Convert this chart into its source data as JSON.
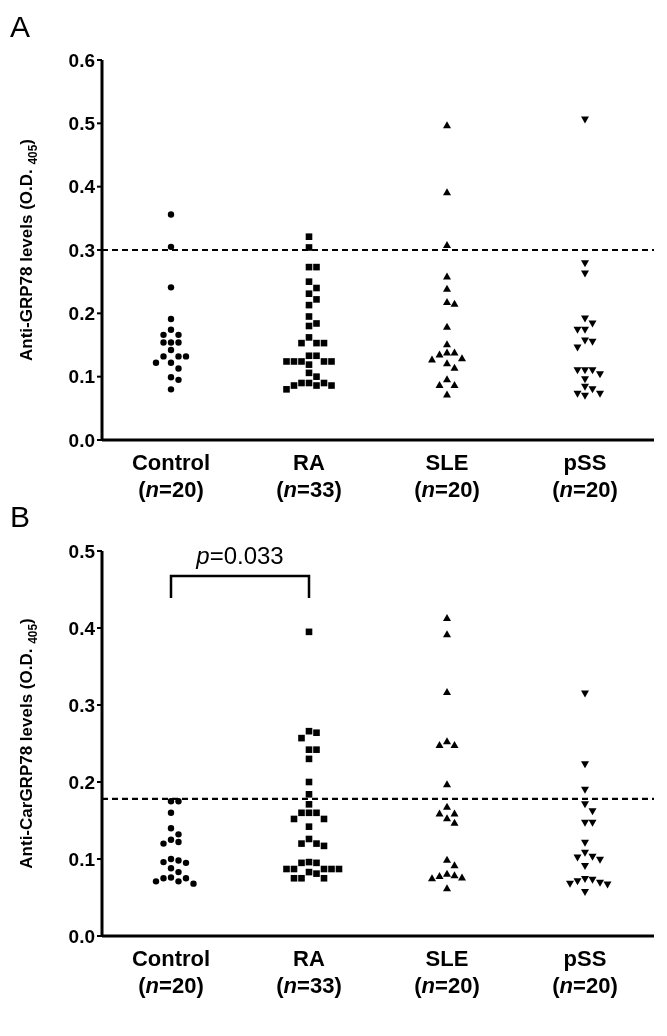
{
  "chart_data": [
    {
      "type": "scatter",
      "title": "A",
      "ylabel": "Anti-GRP78 levels (O.D. $_{405}$)",
      "categories": [
        "Control (n=20)",
        "RA (n=33)",
        "SLE (n=20)",
        "pSS (n=20)"
      ],
      "ylim": [
        0,
        0.6
      ],
      "yticks": [
        {
          "value": 0,
          "label": "0.0"
        },
        {
          "value": 0.1,
          "label": "0.1"
        },
        {
          "value": 0.2,
          "label": "0.2"
        },
        {
          "value": 0.3,
          "label": "0.3"
        },
        {
          "value": 0.4,
          "label": "0.4"
        },
        {
          "value": 0.5,
          "label": "0.5"
        },
        {
          "value": 0.6,
          "label": "0.6"
        }
      ],
      "ref_lines": [
        {
          "axis": "y",
          "value": 0.3,
          "line_style": "dashed",
          "color": "#000000"
        }
      ],
      "series": [
        {
          "color": "#000000",
          "marker": "circle",
          "x": [
            "Control (n=20)",
            "Control (n=20)",
            "Control (n=20)",
            "Control (n=20)",
            "Control (n=20)",
            "Control (n=20)",
            "Control (n=20)",
            "Control (n=20)",
            "Control (n=20)",
            "Control (n=20)",
            "Control (n=20)",
            "Control (n=20)",
            "Control (n=20)",
            "Control (n=20)",
            "Control (n=20)",
            "Control (n=20)",
            "Control (n=20)",
            "Control (n=20)",
            "Control (n=20)",
            "Control (n=20)"
          ],
          "values": [
            0.356,
            0.305,
            0.241,
            0.191,
            0.174,
            0.166,
            0.166,
            0.154,
            0.154,
            0.154,
            0.142,
            0.132,
            0.132,
            0.132,
            0.122,
            0.122,
            0.113,
            0.099,
            0.095,
            0.08
          ]
        },
        {
          "color": "#000000",
          "marker": "square",
          "x": [
            "RA (n=33)",
            "RA (n=33)",
            "RA (n=33)",
            "RA (n=33)",
            "RA (n=33)",
            "RA (n=33)",
            "RA (n=33)",
            "RA (n=33)",
            "RA (n=33)",
            "RA (n=33)",
            "RA (n=33)",
            "RA (n=33)",
            "RA (n=33)",
            "RA (n=33)",
            "RA (n=33)",
            "RA (n=33)",
            "RA (n=33)",
            "RA (n=33)",
            "RA (n=33)",
            "RA (n=33)",
            "RA (n=33)",
            "RA (n=33)",
            "RA (n=33)",
            "RA (n=33)",
            "RA (n=33)",
            "RA (n=33)",
            "RA (n=33)",
            "RA (n=33)",
            "RA (n=33)",
            "RA (n=33)",
            "RA (n=33)",
            "RA (n=33)",
            "RA (n=33)"
          ],
          "values": [
            0.321,
            0.304,
            0.273,
            0.273,
            0.25,
            0.24,
            0.231,
            0.222,
            0.213,
            0.195,
            0.184,
            0.18,
            0.162,
            0.153,
            0.153,
            0.153,
            0.133,
            0.133,
            0.124,
            0.124,
            0.124,
            0.124,
            0.124,
            0.119,
            0.106,
            0.1,
            0.09,
            0.09,
            0.09,
            0.086,
            0.086,
            0.086,
            0.08
          ]
        },
        {
          "color": "#000000",
          "marker": "triangle",
          "x": [
            "SLE (n=20)",
            "SLE (n=20)",
            "SLE (n=20)",
            "SLE (n=20)",
            "SLE (n=20)",
            "SLE (n=20)",
            "SLE (n=20)",
            "SLE (n=20)",
            "SLE (n=20)",
            "SLE (n=20)",
            "SLE (n=20)",
            "SLE (n=20)",
            "SLE (n=20)",
            "SLE (n=20)",
            "SLE (n=20)",
            "SLE (n=20)",
            "SLE (n=20)",
            "SLE (n=20)",
            "SLE (n=20)",
            "SLE (n=20)"
          ],
          "values": [
            0.497,
            0.391,
            0.308,
            0.258,
            0.239,
            0.218,
            0.215,
            0.179,
            0.151,
            0.138,
            0.138,
            0.135,
            0.129,
            0.127,
            0.121,
            0.114,
            0.096,
            0.087,
            0.087,
            0.072
          ]
        },
        {
          "color": "#000000",
          "marker": "triangle-down",
          "x": [
            "pSS (n=20)",
            "pSS (n=20)",
            "pSS (n=20)",
            "pSS (n=20)",
            "pSS (n=20)",
            "pSS (n=20)",
            "pSS (n=20)",
            "pSS (n=20)",
            "pSS (n=20)",
            "pSS (n=20)",
            "pSS (n=20)",
            "pSS (n=20)",
            "pSS (n=20)",
            "pSS (n=20)",
            "pSS (n=20)",
            "pSS (n=20)",
            "pSS (n=20)",
            "pSS (n=20)",
            "pSS (n=20)",
            "pSS (n=20)"
          ],
          "values": [
            0.506,
            0.279,
            0.263,
            0.192,
            0.184,
            0.174,
            0.174,
            0.157,
            0.155,
            0.146,
            0.11,
            0.11,
            0.11,
            0.104,
            0.096,
            0.084,
            0.08,
            0.073,
            0.073,
            0.07
          ]
        }
      ]
    },
    {
      "type": "scatter",
      "title": "B",
      "ylabel": "Anti-CarGRP78 levels (O.D. $_{405}$)",
      "categories": [
        "Control (n=20)",
        "RA (n=33)",
        "SLE (n=20)",
        "pSS (n=20)"
      ],
      "ylim": [
        0,
        0.5
      ],
      "yticks": [
        {
          "value": 0,
          "label": "0.0"
        },
        {
          "value": 0.1,
          "label": "0.1"
        },
        {
          "value": 0.2,
          "label": "0.2"
        },
        {
          "value": 0.3,
          "label": "0.3"
        },
        {
          "value": 0.4,
          "label": "0.4"
        },
        {
          "value": 0.5,
          "label": "0.5"
        }
      ],
      "ref_lines": [
        {
          "axis": "y",
          "value": 0.178,
          "line_style": "dashed",
          "color": "#000000"
        }
      ],
      "annotations": [
        "p=0.033"
      ],
      "series": [
        {
          "color": "#000000",
          "marker": "circle",
          "x": [
            "Control (n=20)",
            "Control (n=20)",
            "Control (n=20)",
            "Control (n=20)",
            "Control (n=20)",
            "Control (n=20)",
            "Control (n=20)",
            "Control (n=20)",
            "Control (n=20)",
            "Control (n=20)",
            "Control (n=20)",
            "Control (n=20)",
            "Control (n=20)",
            "Control (n=20)",
            "Control (n=20)",
            "Control (n=20)",
            "Control (n=20)",
            "Control (n=20)",
            "Control (n=20)",
            "Control (n=20)"
          ],
          "values": [
            0.175,
            0.175,
            0.16,
            0.14,
            0.132,
            0.125,
            0.122,
            0.12,
            0.1,
            0.098,
            0.096,
            0.095,
            0.088,
            0.083,
            0.076,
            0.075,
            0.075,
            0.071,
            0.071,
            0.068
          ]
        },
        {
          "color": "#000000",
          "marker": "square",
          "x": [
            "RA (n=33)",
            "RA (n=33)",
            "RA (n=33)",
            "RA (n=33)",
            "RA (n=33)",
            "RA (n=33)",
            "RA (n=33)",
            "RA (n=33)",
            "RA (n=33)",
            "RA (n=33)",
            "RA (n=33)",
            "RA (n=33)",
            "RA (n=33)",
            "RA (n=33)",
            "RA (n=33)",
            "RA (n=33)",
            "RA (n=33)",
            "RA (n=33)",
            "RA (n=33)",
            "RA (n=33)",
            "RA (n=33)",
            "RA (n=33)",
            "RA (n=33)",
            "RA (n=33)",
            "RA (n=33)",
            "RA (n=33)",
            "RA (n=33)",
            "RA (n=33)",
            "RA (n=33)",
            "RA (n=33)",
            "RA (n=33)",
            "RA (n=33)",
            "RA (n=33)"
          ],
          "values": [
            0.395,
            0.266,
            0.264,
            0.257,
            0.242,
            0.242,
            0.23,
            0.2,
            0.184,
            0.171,
            0.16,
            0.16,
            0.16,
            0.152,
            0.152,
            0.142,
            0.126,
            0.12,
            0.12,
            0.117,
            0.096,
            0.095,
            0.095,
            0.087,
            0.087,
            0.087,
            0.087,
            0.087,
            0.083,
            0.081,
            0.075,
            0.075,
            0.075
          ]
        },
        {
          "color": "#000000",
          "marker": "triangle",
          "x": [
            "SLE (n=20)",
            "SLE (n=20)",
            "SLE (n=20)",
            "SLE (n=20)",
            "SLE (n=20)",
            "SLE (n=20)",
            "SLE (n=20)",
            "SLE (n=20)",
            "SLE (n=20)",
            "SLE (n=20)",
            "SLE (n=20)",
            "SLE (n=20)",
            "SLE (n=20)",
            "SLE (n=20)",
            "SLE (n=20)",
            "SLE (n=20)",
            "SLE (n=20)",
            "SLE (n=20)",
            "SLE (n=20)",
            "SLE (n=20)"
          ],
          "values": [
            0.413,
            0.392,
            0.317,
            0.253,
            0.248,
            0.248,
            0.197,
            0.168,
            0.159,
            0.159,
            0.153,
            0.147,
            0.099,
            0.092,
            0.081,
            0.079,
            0.078,
            0.076,
            0.075,
            0.062
          ]
        },
        {
          "color": "#000000",
          "marker": "triangle-down",
          "x": [
            "pSS (n=20)",
            "pSS (n=20)",
            "pSS (n=20)",
            "pSS (n=20)",
            "pSS (n=20)",
            "pSS (n=20)",
            "pSS (n=20)",
            "pSS (n=20)",
            "pSS (n=20)",
            "pSS (n=20)",
            "pSS (n=20)",
            "pSS (n=20)",
            "pSS (n=20)",
            "pSS (n=20)",
            "pSS (n=20)",
            "pSS (n=20)",
            "pSS (n=20)",
            "pSS (n=20)",
            "pSS (n=20)",
            "pSS (n=20)"
          ],
          "values": [
            0.315,
            0.223,
            0.19,
            0.171,
            0.162,
            0.147,
            0.147,
            0.121,
            0.108,
            0.103,
            0.102,
            0.099,
            0.091,
            0.074,
            0.073,
            0.071,
            0.069,
            0.068,
            0.067,
            0.057
          ]
        }
      ]
    }
  ]
}
